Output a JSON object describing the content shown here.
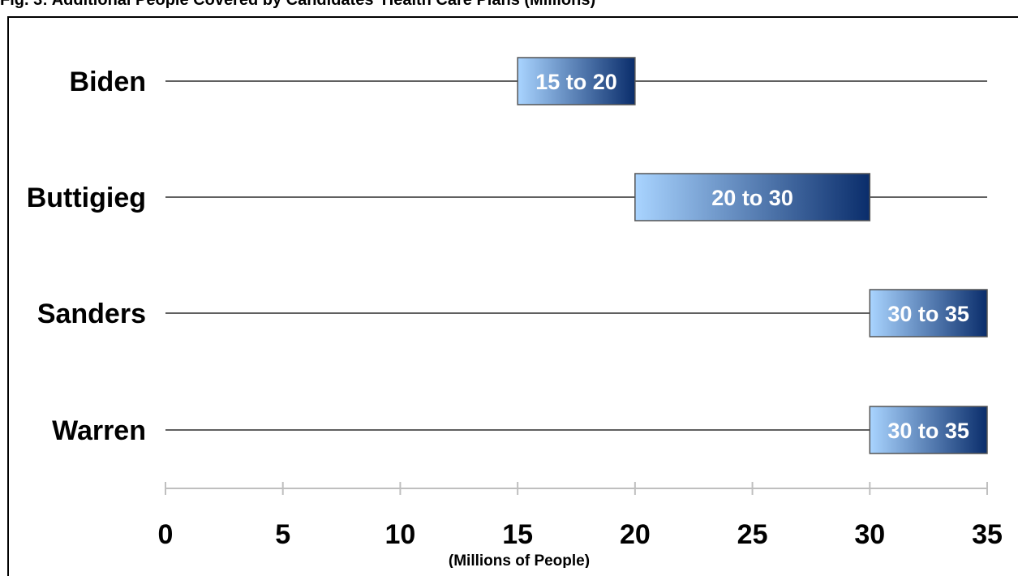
{
  "chart_data": {
    "type": "bar",
    "orientation": "horizontal",
    "title": "Fig. 3: Additional People Covered by Candidates' Health Care Plans (Millions)",
    "xlabel": "(Millions of People)",
    "ylabel": "",
    "xlim": [
      0,
      35
    ],
    "xticks": [
      0,
      5,
      10,
      15,
      20,
      25,
      30,
      35
    ],
    "grid": false,
    "legend": "none",
    "categories": [
      "Biden",
      "Buttigieg",
      "Sanders",
      "Warren"
    ],
    "ranges": [
      {
        "name": "Biden",
        "low": 15,
        "high": 20,
        "label": "15 to 20"
      },
      {
        "name": "Buttigieg",
        "low": 20,
        "high": 30,
        "label": "20 to 30"
      },
      {
        "name": "Sanders",
        "low": 30,
        "high": 35,
        "label": "30 to 35"
      },
      {
        "name": "Warren",
        "low": 30,
        "high": 35,
        "label": "30 to 35"
      }
    ],
    "colors": {
      "bar_light": "#a9d4ff",
      "bar_dark": "#0a2d6b",
      "bar_border": "#555555",
      "line": "#000000",
      "axis": "#bfbfbf"
    }
  }
}
